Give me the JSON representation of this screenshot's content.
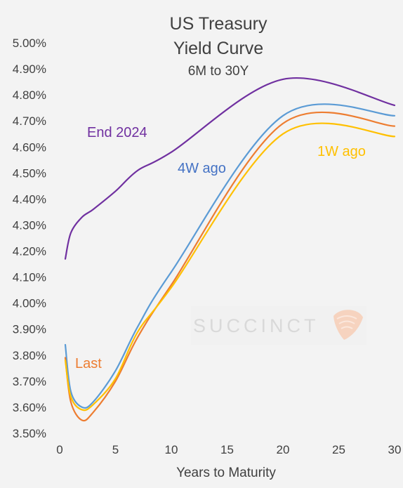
{
  "chart_data": {
    "type": "line",
    "title_lines": [
      "US Treasury",
      "Yield Curve"
    ],
    "subtitle": "6M to 30Y",
    "xlabel": "Years to Maturity",
    "ylabel": "",
    "xlim": [
      0,
      30
    ],
    "ylim": [
      3.5,
      5.0
    ],
    "x_ticks": [
      0,
      5,
      10,
      15,
      20,
      25,
      30
    ],
    "x_tick_labels": [
      "0",
      "5",
      "10",
      "15",
      "20",
      "25",
      "30"
    ],
    "y_ticks": [
      3.5,
      3.6,
      3.7,
      3.8,
      3.9,
      4.0,
      4.1,
      4.2,
      4.3,
      4.4,
      4.5,
      4.6,
      4.7,
      4.8,
      4.9,
      5.0
    ],
    "y_tick_labels": [
      "3.50%",
      "3.60%",
      "3.70%",
      "3.80%",
      "3.90%",
      "4.00%",
      "4.10%",
      "4.20%",
      "4.30%",
      "4.40%",
      "4.50%",
      "4.60%",
      "4.70%",
      "4.80%",
      "4.90%",
      "5.00%"
    ],
    "grid": false,
    "watermark": "SUCCINCT",
    "series": [
      {
        "name": "End 2024",
        "color": "#7030a0",
        "x": [
          0.5,
          1,
          2,
          3,
          5,
          7,
          10,
          20,
          30
        ],
        "y": [
          4.17,
          4.27,
          4.33,
          4.36,
          4.43,
          4.51,
          4.58,
          4.86,
          4.76
        ]
      },
      {
        "name": "4W ago",
        "color": "#5b9bd5",
        "x": [
          0.5,
          1,
          2,
          3,
          5,
          7,
          10,
          20,
          30
        ],
        "y": [
          3.84,
          3.66,
          3.6,
          3.62,
          3.74,
          3.91,
          4.12,
          4.72,
          4.72
        ]
      },
      {
        "name": "Last",
        "color": "#ed7d31",
        "x": [
          0.5,
          1,
          2,
          3,
          5,
          7,
          10,
          20,
          30
        ],
        "y": [
          3.79,
          3.62,
          3.55,
          3.58,
          3.7,
          3.87,
          4.07,
          4.69,
          4.68
        ]
      },
      {
        "name": "1W ago",
        "color": "#ffc000",
        "x": [
          0.5,
          1,
          2,
          3,
          5,
          7,
          10,
          20,
          30
        ],
        "y": [
          3.78,
          3.64,
          3.59,
          3.61,
          3.71,
          3.89,
          4.06,
          4.65,
          4.64
        ]
      }
    ]
  }
}
